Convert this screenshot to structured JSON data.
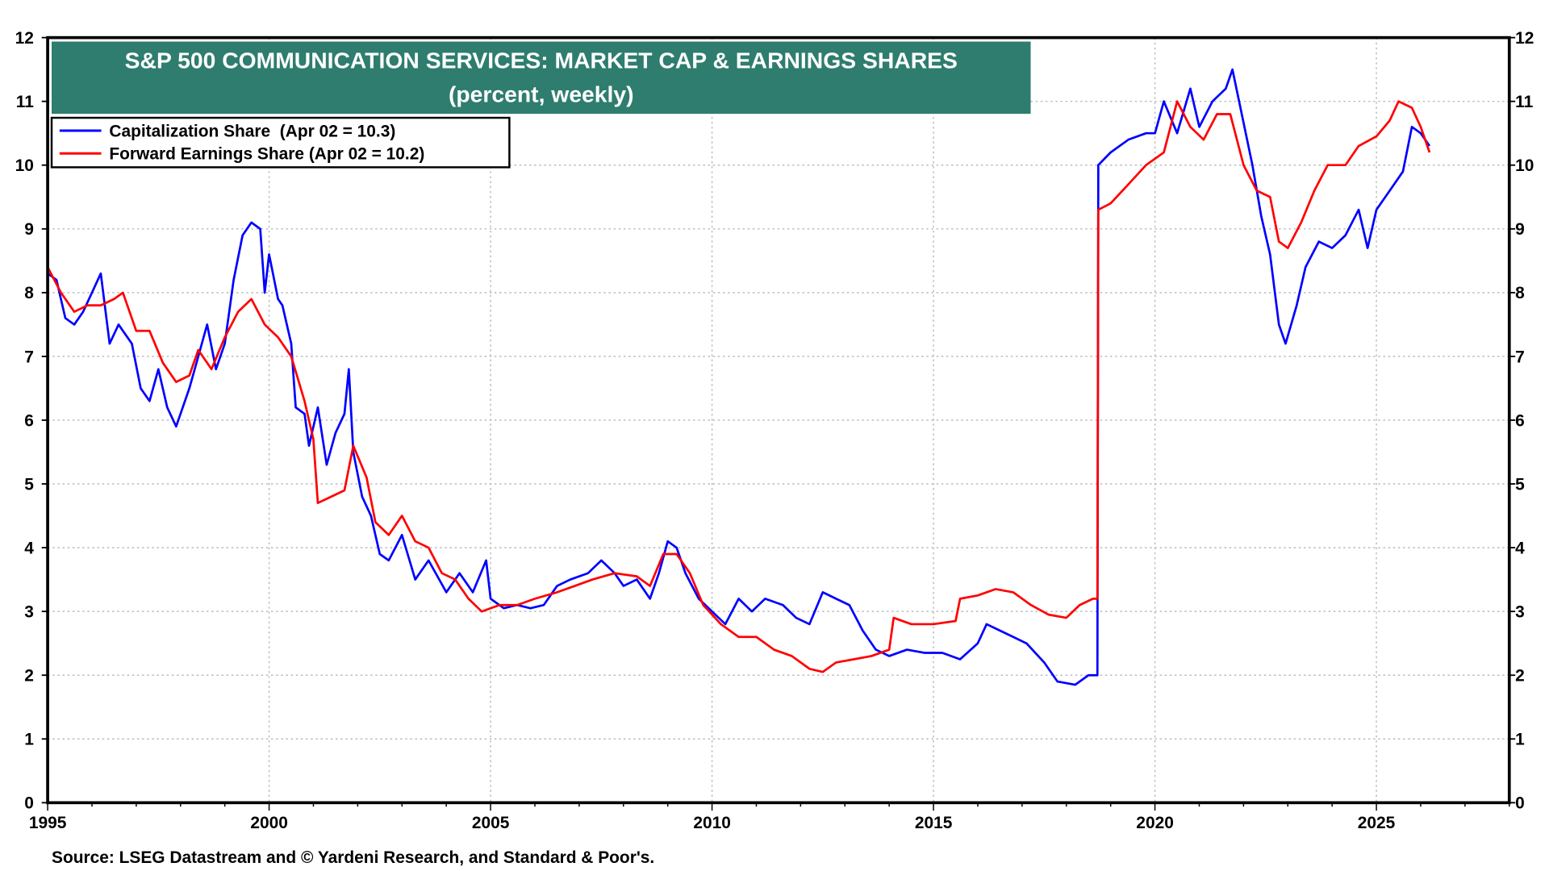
{
  "chart_data": {
    "type": "line",
    "title": "S&P 500 COMMUNICATION SERVICES: MARKET CAP & EARNINGS SHARES",
    "subtitle": "(percent, weekly)",
    "source": "Source: LSEG Datastream and © Yardeni Research, and Standard & Poor's.",
    "xlim": [
      1995,
      2028
    ],
    "ylim": [
      0,
      12
    ],
    "grid": true,
    "legend_position": "top-left",
    "x_ticks": [
      "1995",
      "2000",
      "2005",
      "2010",
      "2015",
      "2020",
      "2025"
    ],
    "y_ticks": [
      "0",
      "1",
      "2",
      "3",
      "4",
      "5",
      "6",
      "7",
      "8",
      "9",
      "10",
      "11",
      "12"
    ],
    "series": [
      {
        "name": "Capitalization Share  (Apr 02 = 10.3)",
        "color": "#0000ff",
        "points": [
          [
            1995.0,
            8.3
          ],
          [
            1995.2,
            8.2
          ],
          [
            1995.4,
            7.6
          ],
          [
            1995.6,
            7.5
          ],
          [
            1995.8,
            7.7
          ],
          [
            1996.0,
            8.0
          ],
          [
            1996.2,
            8.3
          ],
          [
            1996.4,
            7.2
          ],
          [
            1996.6,
            7.5
          ],
          [
            1996.9,
            7.2
          ],
          [
            1997.1,
            6.5
          ],
          [
            1997.3,
            6.3
          ],
          [
            1997.5,
            6.8
          ],
          [
            1997.7,
            6.2
          ],
          [
            1997.9,
            5.9
          ],
          [
            1998.2,
            6.5
          ],
          [
            1998.4,
            7.0
          ],
          [
            1998.6,
            7.5
          ],
          [
            1998.8,
            6.8
          ],
          [
            1999.0,
            7.2
          ],
          [
            1999.2,
            8.2
          ],
          [
            1999.4,
            8.9
          ],
          [
            1999.6,
            9.1
          ],
          [
            1999.8,
            9.0
          ],
          [
            1999.9,
            8.0
          ],
          [
            2000.0,
            8.6
          ],
          [
            2000.2,
            7.9
          ],
          [
            2000.3,
            7.8
          ],
          [
            2000.5,
            7.2
          ],
          [
            2000.6,
            6.2
          ],
          [
            2000.8,
            6.1
          ],
          [
            2000.9,
            5.6
          ],
          [
            2001.1,
            6.2
          ],
          [
            2001.3,
            5.3
          ],
          [
            2001.5,
            5.8
          ],
          [
            2001.7,
            6.1
          ],
          [
            2001.8,
            6.8
          ],
          [
            2001.9,
            5.5
          ],
          [
            2002.1,
            4.8
          ],
          [
            2002.3,
            4.5
          ],
          [
            2002.5,
            3.9
          ],
          [
            2002.7,
            3.8
          ],
          [
            2003.0,
            4.2
          ],
          [
            2003.3,
            3.5
          ],
          [
            2003.6,
            3.8
          ],
          [
            2004.0,
            3.3
          ],
          [
            2004.3,
            3.6
          ],
          [
            2004.6,
            3.3
          ],
          [
            2004.9,
            3.8
          ],
          [
            2005.0,
            3.2
          ],
          [
            2005.3,
            3.05
          ],
          [
            2005.6,
            3.1
          ],
          [
            2005.9,
            3.05
          ],
          [
            2006.2,
            3.1
          ],
          [
            2006.5,
            3.4
          ],
          [
            2006.8,
            3.5
          ],
          [
            2007.2,
            3.6
          ],
          [
            2007.5,
            3.8
          ],
          [
            2007.8,
            3.6
          ],
          [
            2008.0,
            3.4
          ],
          [
            2008.3,
            3.5
          ],
          [
            2008.6,
            3.2
          ],
          [
            2008.8,
            3.6
          ],
          [
            2009.0,
            4.1
          ],
          [
            2009.2,
            4.0
          ],
          [
            2009.4,
            3.6
          ],
          [
            2009.7,
            3.2
          ],
          [
            2010.0,
            3.0
          ],
          [
            2010.3,
            2.8
          ],
          [
            2010.6,
            3.2
          ],
          [
            2010.9,
            3.0
          ],
          [
            2011.2,
            3.2
          ],
          [
            2011.6,
            3.1
          ],
          [
            2011.9,
            2.9
          ],
          [
            2012.2,
            2.8
          ],
          [
            2012.5,
            3.3
          ],
          [
            2012.8,
            3.2
          ],
          [
            2013.1,
            3.1
          ],
          [
            2013.4,
            2.7
          ],
          [
            2013.7,
            2.4
          ],
          [
            2014.0,
            2.3
          ],
          [
            2014.4,
            2.4
          ],
          [
            2014.8,
            2.35
          ],
          [
            2015.2,
            2.35
          ],
          [
            2015.6,
            2.25
          ],
          [
            2016.0,
            2.5
          ],
          [
            2016.2,
            2.8
          ],
          [
            2016.5,
            2.7
          ],
          [
            2016.8,
            2.6
          ],
          [
            2017.1,
            2.5
          ],
          [
            2017.5,
            2.2
          ],
          [
            2017.8,
            1.9
          ],
          [
            2018.2,
            1.85
          ],
          [
            2018.5,
            2.0
          ],
          [
            2018.7,
            2.0
          ],
          [
            2018.72,
            10.0
          ],
          [
            2019.0,
            10.2
          ],
          [
            2019.4,
            10.4
          ],
          [
            2019.8,
            10.5
          ],
          [
            2020.0,
            10.5
          ],
          [
            2020.2,
            11.0
          ],
          [
            2020.5,
            10.5
          ],
          [
            2020.8,
            11.2
          ],
          [
            2021.0,
            10.6
          ],
          [
            2021.3,
            11.0
          ],
          [
            2021.6,
            11.2
          ],
          [
            2021.75,
            11.5
          ],
          [
            2021.9,
            11.0
          ],
          [
            2022.2,
            10.0
          ],
          [
            2022.4,
            9.2
          ],
          [
            2022.6,
            8.6
          ],
          [
            2022.8,
            7.5
          ],
          [
            2022.95,
            7.2
          ],
          [
            2023.2,
            7.8
          ],
          [
            2023.4,
            8.4
          ],
          [
            2023.7,
            8.8
          ],
          [
            2024.0,
            8.7
          ],
          [
            2024.3,
            8.9
          ],
          [
            2024.6,
            9.3
          ],
          [
            2024.8,
            8.7
          ],
          [
            2025.0,
            9.3
          ],
          [
            2025.3,
            9.6
          ],
          [
            2025.6,
            9.9
          ],
          [
            2025.8,
            10.6
          ],
          [
            2026.0,
            10.5
          ],
          [
            2026.2,
            10.3
          ]
        ]
      },
      {
        "name": "Forward Earnings Share (Apr 02 = 10.2)",
        "color": "#ff0000",
        "points": [
          [
            1995.0,
            8.4
          ],
          [
            1995.3,
            8.0
          ],
          [
            1995.6,
            7.7
          ],
          [
            1995.9,
            7.8
          ],
          [
            1996.2,
            7.8
          ],
          [
            1996.5,
            7.9
          ],
          [
            1996.7,
            8.0
          ],
          [
            1997.0,
            7.4
          ],
          [
            1997.3,
            7.4
          ],
          [
            1997.6,
            6.9
          ],
          [
            1997.9,
            6.6
          ],
          [
            1998.2,
            6.7
          ],
          [
            1998.4,
            7.1
          ],
          [
            1998.7,
            6.8
          ],
          [
            1999.0,
            7.3
          ],
          [
            1999.3,
            7.7
          ],
          [
            1999.6,
            7.9
          ],
          [
            1999.9,
            7.5
          ],
          [
            2000.2,
            7.3
          ],
          [
            2000.5,
            7.0
          ],
          [
            2000.8,
            6.3
          ],
          [
            2001.0,
            5.7
          ],
          [
            2001.1,
            4.7
          ],
          [
            2001.4,
            4.8
          ],
          [
            2001.7,
            4.9
          ],
          [
            2001.9,
            5.6
          ],
          [
            2002.2,
            5.1
          ],
          [
            2002.4,
            4.4
          ],
          [
            2002.7,
            4.2
          ],
          [
            2003.0,
            4.5
          ],
          [
            2003.3,
            4.1
          ],
          [
            2003.6,
            4.0
          ],
          [
            2003.9,
            3.6
          ],
          [
            2004.2,
            3.5
          ],
          [
            2004.5,
            3.2
          ],
          [
            2004.8,
            3.0
          ],
          [
            2005.2,
            3.1
          ],
          [
            2005.6,
            3.1
          ],
          [
            2006.0,
            3.2
          ],
          [
            2006.5,
            3.3
          ],
          [
            2006.9,
            3.4
          ],
          [
            2007.3,
            3.5
          ],
          [
            2007.8,
            3.6
          ],
          [
            2008.3,
            3.55
          ],
          [
            2008.6,
            3.4
          ],
          [
            2008.9,
            3.9
          ],
          [
            2009.2,
            3.9
          ],
          [
            2009.5,
            3.6
          ],
          [
            2009.8,
            3.1
          ],
          [
            2010.2,
            2.8
          ],
          [
            2010.6,
            2.6
          ],
          [
            2011.0,
            2.6
          ],
          [
            2011.4,
            2.4
          ],
          [
            2011.8,
            2.3
          ],
          [
            2012.2,
            2.1
          ],
          [
            2012.5,
            2.05
          ],
          [
            2012.8,
            2.2
          ],
          [
            2013.2,
            2.25
          ],
          [
            2013.6,
            2.3
          ],
          [
            2014.0,
            2.4
          ],
          [
            2014.1,
            2.9
          ],
          [
            2014.5,
            2.8
          ],
          [
            2015.0,
            2.8
          ],
          [
            2015.5,
            2.85
          ],
          [
            2015.6,
            3.2
          ],
          [
            2016.0,
            3.25
          ],
          [
            2016.4,
            3.35
          ],
          [
            2016.8,
            3.3
          ],
          [
            2017.2,
            3.1
          ],
          [
            2017.6,
            2.95
          ],
          [
            2018.0,
            2.9
          ],
          [
            2018.3,
            3.1
          ],
          [
            2018.6,
            3.2
          ],
          [
            2018.7,
            3.2
          ],
          [
            2018.72,
            9.3
          ],
          [
            2019.0,
            9.4
          ],
          [
            2019.4,
            9.7
          ],
          [
            2019.8,
            10.0
          ],
          [
            2020.2,
            10.2
          ],
          [
            2020.5,
            11.0
          ],
          [
            2020.8,
            10.6
          ],
          [
            2021.1,
            10.4
          ],
          [
            2021.4,
            10.8
          ],
          [
            2021.7,
            10.8
          ],
          [
            2022.0,
            10.0
          ],
          [
            2022.3,
            9.6
          ],
          [
            2022.6,
            9.5
          ],
          [
            2022.8,
            8.8
          ],
          [
            2023.0,
            8.7
          ],
          [
            2023.3,
            9.1
          ],
          [
            2023.6,
            9.6
          ],
          [
            2023.9,
            10.0
          ],
          [
            2024.3,
            10.0
          ],
          [
            2024.6,
            10.3
          ],
          [
            2025.0,
            10.45
          ],
          [
            2025.3,
            10.7
          ],
          [
            2025.5,
            11.0
          ],
          [
            2025.8,
            10.9
          ],
          [
            2026.0,
            10.6
          ],
          [
            2026.2,
            10.2
          ]
        ]
      }
    ]
  }
}
